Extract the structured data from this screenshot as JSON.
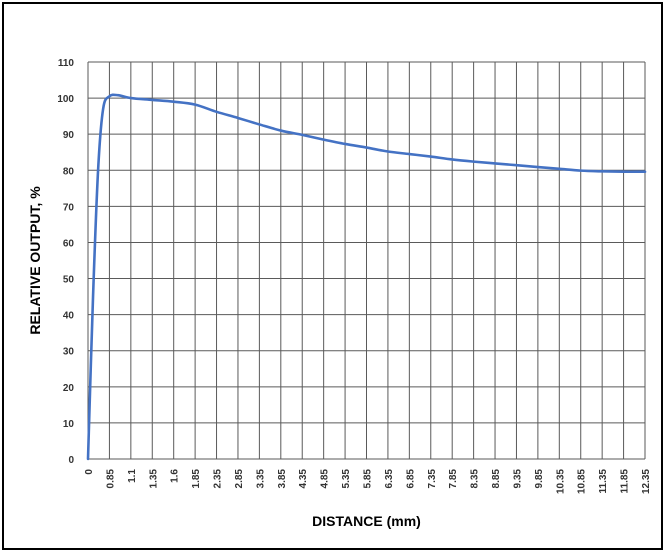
{
  "chart_data": {
    "type": "line",
    "title": "",
    "xlabel": "DISTANCE (mm)",
    "ylabel": "RELATIVE OUTPUT, %",
    "x_tick_labels": [
      "0",
      "0.85",
      "1.1",
      "1.35",
      "1.6",
      "1.85",
      "2.35",
      "2.85",
      "3.35",
      "3.85",
      "4.35",
      "4.85",
      "5.35",
      "5.85",
      "6.35",
      "6.85",
      "7.35",
      "7.85",
      "8.35",
      "8.85",
      "9.35",
      "9.85",
      "10.35",
      "10.85",
      "11.35",
      "11.85",
      "12.35"
    ],
    "y_ticks": [
      0,
      10,
      20,
      30,
      40,
      50,
      60,
      70,
      80,
      90,
      100,
      110
    ],
    "ylim": [
      0,
      110
    ],
    "grid": true,
    "legend": "none",
    "series_color": "#4472C4",
    "series": [
      {
        "x": [
          "0",
          "0.2",
          "0.4",
          "0.6",
          "0.85",
          "0.95",
          "1.1",
          "1.35",
          "1.6",
          "1.85",
          "2.35",
          "2.85",
          "3.35",
          "3.85",
          "4.35",
          "4.85",
          "5.35",
          "5.85",
          "6.35",
          "6.85",
          "7.35",
          "7.85",
          "8.35",
          "8.85",
          "9.35",
          "9.85",
          "10.35",
          "10.85",
          "11.35",
          "11.85",
          "12.35"
        ],
        "values": [
          0,
          45,
          80,
          97,
          100.5,
          100.8,
          100,
          99.5,
          99,
          98.2,
          96.2,
          94.5,
          92.7,
          91,
          89.8,
          88.5,
          87.3,
          86.3,
          85.2,
          84.5,
          83.8,
          83,
          82.4,
          81.9,
          81.4,
          80.9,
          80.4,
          79.9,
          79.7,
          79.6,
          79.6
        ]
      }
    ]
  }
}
